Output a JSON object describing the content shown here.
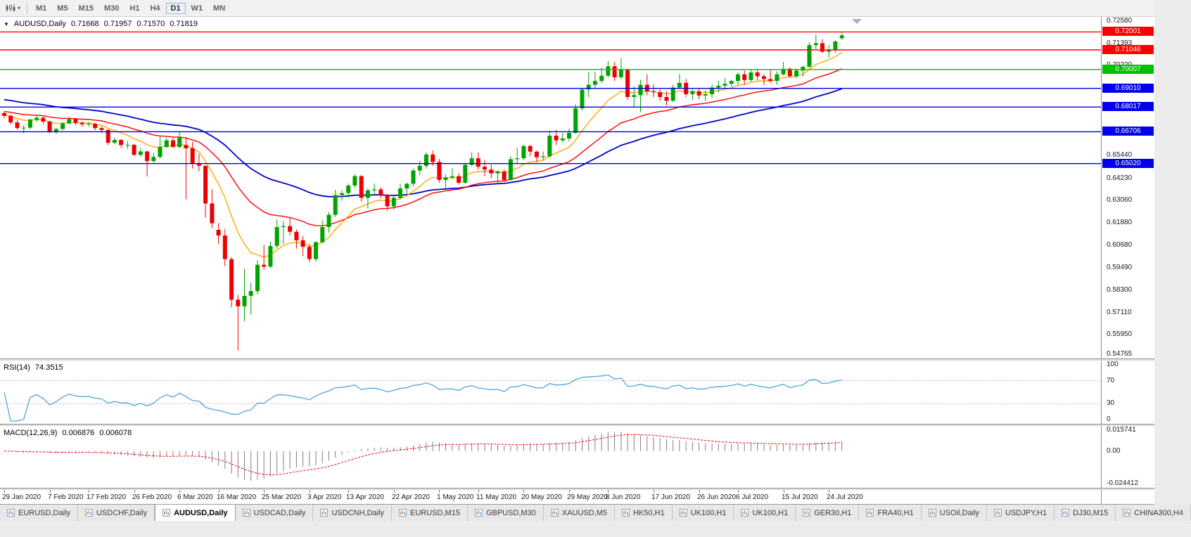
{
  "toolbar": {
    "chart_type_icon": "candlestick-chart-icon",
    "dropdown_icon": "chevron-down-icon",
    "timeframes": [
      {
        "label": "M1",
        "active": false
      },
      {
        "label": "M5",
        "active": false
      },
      {
        "label": "M15",
        "active": false
      },
      {
        "label": "M30",
        "active": false
      },
      {
        "label": "H1",
        "active": false
      },
      {
        "label": "H4",
        "active": false
      },
      {
        "label": "D1",
        "active": true
      },
      {
        "label": "W1",
        "active": false
      },
      {
        "label": "MN",
        "active": false
      }
    ]
  },
  "chart": {
    "title": "AUDUSD,Daily",
    "ohlc": {
      "open": "0.71668",
      "high": "0.71957",
      "low": "0.71570",
      "close": "0.71819"
    }
  },
  "rsi_panel": {
    "label": "RSI(14)",
    "value": "74.3515"
  },
  "macd_panel": {
    "label": "MACD(12,26,9)",
    "main_value": "0.006876",
    "signal_value": "0.006078"
  },
  "chart_data": {
    "type": "candlestick",
    "symbol": "AUDUSD",
    "timeframe": "Daily",
    "current_price": 0.71819,
    "price_range": [
      0.5468,
      0.728
    ],
    "colors": {
      "bull": "#00a400",
      "bear": "#ee0000"
    },
    "candles": [
      [
        0.677,
        0.6778,
        0.6742,
        0.6755
      ],
      [
        0.6755,
        0.6761,
        0.671,
        0.672
      ],
      [
        0.672,
        0.6733,
        0.6682,
        0.669
      ],
      [
        0.669,
        0.6705,
        0.6662,
        0.6692
      ],
      [
        0.6692,
        0.674,
        0.6685,
        0.6735
      ],
      [
        0.6735,
        0.6758,
        0.6724,
        0.6745
      ],
      [
        0.6745,
        0.6751,
        0.6712,
        0.6725
      ],
      [
        0.6725,
        0.673,
        0.6662,
        0.667
      ],
      [
        0.667,
        0.6692,
        0.6658,
        0.6685
      ],
      [
        0.6685,
        0.6722,
        0.6679,
        0.6715
      ],
      [
        0.6715,
        0.675,
        0.6709,
        0.6738
      ],
      [
        0.6738,
        0.6743,
        0.6705,
        0.6718
      ],
      [
        0.6718,
        0.6724,
        0.6697,
        0.671
      ],
      [
        0.671,
        0.6722,
        0.6699,
        0.6713
      ],
      [
        0.6713,
        0.6717,
        0.668,
        0.669
      ],
      [
        0.669,
        0.67,
        0.6665,
        0.668
      ],
      [
        0.668,
        0.6683,
        0.66,
        0.6612
      ],
      [
        0.6612,
        0.664,
        0.6604,
        0.6627
      ],
      [
        0.6627,
        0.6632,
        0.6585,
        0.66
      ],
      [
        0.66,
        0.662,
        0.658,
        0.6601
      ],
      [
        0.6601,
        0.6607,
        0.6542,
        0.6548
      ],
      [
        0.6548,
        0.6585,
        0.6539,
        0.6566
      ],
      [
        0.6566,
        0.6571,
        0.6433,
        0.6515
      ],
      [
        0.6515,
        0.656,
        0.6508,
        0.6537
      ],
      [
        0.6537,
        0.6645,
        0.653,
        0.659
      ],
      [
        0.659,
        0.664,
        0.6584,
        0.6625
      ],
      [
        0.6625,
        0.6638,
        0.6585,
        0.659
      ],
      [
        0.659,
        0.6668,
        0.6584,
        0.664
      ],
      [
        0.66,
        0.6641,
        0.6313,
        0.6583
      ],
      [
        0.6583,
        0.6618,
        0.6475,
        0.65
      ],
      [
        0.65,
        0.6555,
        0.646,
        0.649
      ],
      [
        0.649,
        0.6492,
        0.6215,
        0.629
      ],
      [
        0.629,
        0.6365,
        0.616,
        0.6185
      ],
      [
        0.615,
        0.6186,
        0.6075,
        0.612
      ],
      [
        0.612,
        0.6155,
        0.5958,
        0.5995
      ],
      [
        0.5995,
        0.6006,
        0.574,
        0.578
      ],
      [
        0.578,
        0.5805,
        0.551,
        0.5745
      ],
      [
        0.5745,
        0.5945,
        0.5665,
        0.58
      ],
      [
        0.58,
        0.587,
        0.57,
        0.5825
      ],
      [
        0.5825,
        0.599,
        0.5808,
        0.5965
      ],
      [
        0.5965,
        0.607,
        0.5938,
        0.5955
      ],
      [
        0.5955,
        0.609,
        0.5948,
        0.6065
      ],
      [
        0.6065,
        0.6205,
        0.6053,
        0.6165
      ],
      [
        0.6165,
        0.6196,
        0.6075,
        0.617
      ],
      [
        0.617,
        0.6215,
        0.612,
        0.614
      ],
      [
        0.614,
        0.6152,
        0.605,
        0.6095
      ],
      [
        0.6095,
        0.6117,
        0.601,
        0.606
      ],
      [
        0.606,
        0.6076,
        0.598,
        0.5995
      ],
      [
        0.5995,
        0.609,
        0.5982,
        0.6085
      ],
      [
        0.6085,
        0.62,
        0.6078,
        0.6165
      ],
      [
        0.6165,
        0.6245,
        0.6135,
        0.623
      ],
      [
        0.623,
        0.6363,
        0.6218,
        0.6335
      ],
      [
        0.6335,
        0.6361,
        0.6305,
        0.6345
      ],
      [
        0.6345,
        0.6396,
        0.632,
        0.6385
      ],
      [
        0.6385,
        0.6445,
        0.6374,
        0.6435
      ],
      [
        0.6435,
        0.6441,
        0.63,
        0.632
      ],
      [
        0.632,
        0.637,
        0.6264,
        0.636
      ],
      [
        0.636,
        0.6396,
        0.633,
        0.6365
      ],
      [
        0.6365,
        0.6376,
        0.6318,
        0.6335
      ],
      [
        0.6335,
        0.6341,
        0.6253,
        0.6275
      ],
      [
        0.6275,
        0.633,
        0.6258,
        0.632
      ],
      [
        0.632,
        0.6395,
        0.6313,
        0.637
      ],
      [
        0.637,
        0.6401,
        0.6338,
        0.6395
      ],
      [
        0.6395,
        0.6475,
        0.6383,
        0.6465
      ],
      [
        0.6465,
        0.6516,
        0.644,
        0.649
      ],
      [
        0.649,
        0.6561,
        0.6475,
        0.655
      ],
      [
        0.655,
        0.6571,
        0.649,
        0.651
      ],
      [
        0.651,
        0.6526,
        0.64,
        0.6415
      ],
      [
        0.6415,
        0.6446,
        0.637,
        0.6428
      ],
      [
        0.6428,
        0.6476,
        0.6418,
        0.6435
      ],
      [
        0.6435,
        0.6451,
        0.639,
        0.64
      ],
      [
        0.64,
        0.6506,
        0.6394,
        0.6495
      ],
      [
        0.6495,
        0.6561,
        0.6489,
        0.653
      ],
      [
        0.653,
        0.6561,
        0.647,
        0.6485
      ],
      [
        0.6485,
        0.652,
        0.6435,
        0.647
      ],
      [
        0.647,
        0.6496,
        0.6425,
        0.645
      ],
      [
        0.645,
        0.6466,
        0.64,
        0.646
      ],
      [
        0.646,
        0.6471,
        0.6405,
        0.6415
      ],
      [
        0.6415,
        0.6541,
        0.6409,
        0.6525
      ],
      [
        0.6525,
        0.6586,
        0.6505,
        0.653
      ],
      [
        0.653,
        0.6601,
        0.6519,
        0.6595
      ],
      [
        0.6595,
        0.6601,
        0.654,
        0.6565
      ],
      [
        0.6565,
        0.6571,
        0.6509,
        0.6535
      ],
      [
        0.6535,
        0.6566,
        0.6519,
        0.654
      ],
      [
        0.654,
        0.6676,
        0.6534,
        0.665
      ],
      [
        0.665,
        0.6681,
        0.66,
        0.6625
      ],
      [
        0.6625,
        0.6666,
        0.6614,
        0.6635
      ],
      [
        0.6635,
        0.6686,
        0.6619,
        0.6665
      ],
      [
        0.6665,
        0.6816,
        0.6659,
        0.6795
      ],
      [
        0.6795,
        0.6901,
        0.6784,
        0.6895
      ],
      [
        0.6895,
        0.6986,
        0.6855,
        0.692
      ],
      [
        0.692,
        0.6989,
        0.6904,
        0.694
      ],
      [
        0.694,
        0.7011,
        0.6929,
        0.6968
      ],
      [
        0.6968,
        0.7046,
        0.6959,
        0.7018
      ],
      [
        0.7018,
        0.7041,
        0.694,
        0.696
      ],
      [
        0.696,
        0.7061,
        0.6949,
        0.6998
      ],
      [
        0.6998,
        0.7006,
        0.684,
        0.6855
      ],
      [
        0.6855,
        0.6911,
        0.68,
        0.6865
      ],
      [
        0.6865,
        0.6946,
        0.6775,
        0.692
      ],
      [
        0.692,
        0.6976,
        0.6864,
        0.6885
      ],
      [
        0.6885,
        0.6921,
        0.6854,
        0.688
      ],
      [
        0.688,
        0.6896,
        0.6834,
        0.6855
      ],
      [
        0.6855,
        0.6886,
        0.681,
        0.6835
      ],
      [
        0.6835,
        0.6921,
        0.6829,
        0.6905
      ],
      [
        0.6905,
        0.6976,
        0.6899,
        0.693
      ],
      [
        0.693,
        0.6951,
        0.6855,
        0.687
      ],
      [
        0.687,
        0.6896,
        0.6839,
        0.6885
      ],
      [
        0.6885,
        0.6901,
        0.6844,
        0.6863
      ],
      [
        0.6863,
        0.6891,
        0.6834,
        0.687
      ],
      [
        0.687,
        0.6921,
        0.6849,
        0.6905
      ],
      [
        0.6905,
        0.6941,
        0.6879,
        0.6915
      ],
      [
        0.6915,
        0.6956,
        0.6899,
        0.6925
      ],
      [
        0.6925,
        0.6946,
        0.6909,
        0.694
      ],
      [
        0.694,
        0.6986,
        0.6919,
        0.6975
      ],
      [
        0.6975,
        0.6996,
        0.692,
        0.6945
      ],
      [
        0.6945,
        0.7001,
        0.6934,
        0.6985
      ],
      [
        0.6985,
        0.7001,
        0.6944,
        0.6965
      ],
      [
        0.6965,
        0.6976,
        0.6919,
        0.695
      ],
      [
        0.695,
        0.7001,
        0.6929,
        0.694
      ],
      [
        0.694,
        0.6991,
        0.6919,
        0.6975
      ],
      [
        0.6975,
        0.7041,
        0.6969,
        0.7005
      ],
      [
        0.7005,
        0.7011,
        0.6959,
        0.6965
      ],
      [
        0.6965,
        0.7006,
        0.6954,
        0.6995
      ],
      [
        0.6995,
        0.7021,
        0.6964,
        0.7015
      ],
      [
        0.7015,
        0.7146,
        0.7009,
        0.713
      ],
      [
        0.713,
        0.7186,
        0.7109,
        0.714
      ],
      [
        0.714,
        0.7161,
        0.7089,
        0.7095
      ],
      [
        0.7095,
        0.7131,
        0.7064,
        0.7105
      ],
      [
        0.7105,
        0.7156,
        0.7089,
        0.715
      ],
      [
        0.71668,
        0.71957,
        0.7157,
        0.71819
      ]
    ],
    "date_labels": [
      {
        "i": 0,
        "label": "29 Jan 2020"
      },
      {
        "i": 7,
        "label": "7 Feb 2020"
      },
      {
        "i": 13,
        "label": "17 Feb 2020"
      },
      {
        "i": 20,
        "label": "26 Feb 2020"
      },
      {
        "i": 27,
        "label": "6 Mar 2020"
      },
      {
        "i": 33,
        "label": "16 Mar 2020"
      },
      {
        "i": 40,
        "label": "25 Mar 2020"
      },
      {
        "i": 47,
        "label": "3 Apr 2020"
      },
      {
        "i": 53,
        "label": "13 Apr 2020"
      },
      {
        "i": 60,
        "label": "22 Apr 2020"
      },
      {
        "i": 67,
        "label": "1 May 2020"
      },
      {
        "i": 73,
        "label": "11 May 2020"
      },
      {
        "i": 80,
        "label": "20 May 2020"
      },
      {
        "i": 87,
        "label": "29 May 2020"
      },
      {
        "i": 93,
        "label": "8 Jun 2020"
      },
      {
        "i": 100,
        "label": "17 Jun 2020"
      },
      {
        "i": 107,
        "label": "26 Jun 2020"
      },
      {
        "i": 113,
        "label": "6 Jul 2020"
      },
      {
        "i": 120,
        "label": "15 Jul 2020"
      },
      {
        "i": 127,
        "label": "24 Jul 2020"
      }
    ],
    "axis_labels": [
      0.7258,
      0.71393,
      0.7022,
      0.6544,
      0.6423,
      0.6306,
      0.6188,
      0.6068,
      0.5949,
      0.583,
      0.5711,
      0.5595,
      0.54765
    ],
    "hlines": [
      {
        "price": 0.72001,
        "color": "#ff0000"
      },
      {
        "price": 0.71046,
        "color": "#ff0000"
      },
      {
        "price": 0.70007,
        "color": "#00c000"
      },
      {
        "price": 0.6901,
        "color": "#0000e8"
      },
      {
        "price": 0.68017,
        "color": "#0000e8"
      },
      {
        "price": 0.66706,
        "color": "#0000e8"
      },
      {
        "price": 0.6502,
        "color": "#0000e8"
      }
    ],
    "moving_averages": [
      {
        "period": 48,
        "color": "#0000cc",
        "width": 1.8,
        "seed": 0.6845
      },
      {
        "period": 25,
        "color": "#ff0000",
        "width": 1.4,
        "seed": 0.678
      },
      {
        "period": 10,
        "color": "#ffa800",
        "width": 1.4,
        "seed": 0.676
      }
    ],
    "indicators": {
      "rsi": {
        "period": 14,
        "current": 74.3515,
        "color": "#4ea6dc",
        "levels": [
          100,
          70,
          30,
          0
        ],
        "level_lines": [
          70,
          30
        ]
      },
      "macd": {
        "fast": 12,
        "slow": 26,
        "signal": 9,
        "current_macd": 0.006876,
        "current_signal": 0.006078,
        "range": [
          -0.024412,
          0.015741
        ],
        "axis_labels": [
          {
            "v": 0.015741,
            "label": "0.015741"
          },
          {
            "v": 0,
            "label": "0.00"
          },
          {
            "v": -0.024412,
            "label": "-0.024412"
          }
        ],
        "histogram_color": "#7f7f7f",
        "signal_color": "#ff0000"
      }
    }
  },
  "tabs": [
    {
      "label": "EURUSD,Daily",
      "active": false
    },
    {
      "label": "USDCHF,Daily",
      "active": false
    },
    {
      "label": "AUDUSD,Daily",
      "active": true
    },
    {
      "label": "USDCAD,Daily",
      "active": false
    },
    {
      "label": "USDCNH,Daily",
      "active": false
    },
    {
      "label": "EURUSD,M15",
      "active": false
    },
    {
      "label": "GBPUSD,M30",
      "active": false
    },
    {
      "label": "XAUUSD,M5",
      "active": false
    },
    {
      "label": "HK50,H1",
      "active": false
    },
    {
      "label": "UK100,H1",
      "active": false
    },
    {
      "label": "UK100,H1",
      "active": false
    },
    {
      "label": "GER30,H1",
      "active": false
    },
    {
      "label": "FRA40,H1",
      "active": false
    },
    {
      "label": "USOil,Daily",
      "active": false
    },
    {
      "label": "USDJPY,H1",
      "active": false
    },
    {
      "label": "DJ30,M15",
      "active": false
    },
    {
      "label": "CHINA300,H4",
      "active": false
    }
  ]
}
